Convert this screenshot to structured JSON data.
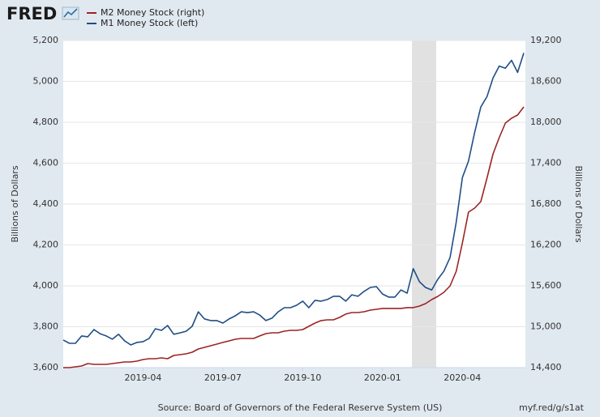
{
  "chart_data": {
    "type": "line",
    "brand": "FRED",
    "source": "Source: Board of Governors of the Federal Reserve System (US)",
    "url": "myf.red/g/s1at",
    "ylabel": "Billions of Dollars",
    "y2label": "Billions of Dollars",
    "grid": true,
    "categories": [
      null,
      null,
      null,
      null,
      null,
      null,
      null,
      null,
      null,
      null,
      null,
      null,
      null,
      "2019-04",
      null,
      null,
      null,
      null,
      null,
      null,
      null,
      null,
      null,
      null,
      null,
      null,
      "2019-07",
      null,
      null,
      null,
      null,
      null,
      null,
      null,
      null,
      null,
      null,
      null,
      null,
      "2019-10",
      null,
      null,
      null,
      null,
      null,
      null,
      null,
      null,
      null,
      null,
      null,
      null,
      "2020-01",
      null,
      null,
      null,
      null,
      null,
      null,
      null,
      null,
      null,
      null,
      null,
      null,
      "2020-04",
      null,
      null,
      null,
      null,
      null,
      null,
      null,
      null,
      null,
      null
    ],
    "ylim": [
      3600,
      5200
    ],
    "yticks": [
      {
        "value": 3600,
        "label": "3,600"
      },
      {
        "value": 3800,
        "label": "3,800"
      },
      {
        "value": 4000,
        "label": "4,000"
      },
      {
        "value": 4200,
        "label": "4,200"
      },
      {
        "value": 4400,
        "label": "4,400"
      },
      {
        "value": 4600,
        "label": "4,600"
      },
      {
        "value": 4800,
        "label": "4,800"
      },
      {
        "value": 5000,
        "label": "5,000"
      },
      {
        "value": 5200,
        "label": "5,200"
      }
    ],
    "y2lim": [
      14400,
      19200
    ],
    "y2ticks": [
      {
        "value": 14400,
        "label": "14,400"
      },
      {
        "value": 15000,
        "label": "15,000"
      },
      {
        "value": 15600,
        "label": "15,600"
      },
      {
        "value": 16200,
        "label": "16,200"
      },
      {
        "value": 16800,
        "label": "16,800"
      },
      {
        "value": 17400,
        "label": "17,400"
      },
      {
        "value": 18000,
        "label": "18,000"
      },
      {
        "value": 18600,
        "label": "18,600"
      },
      {
        "value": 19200,
        "label": "19,200"
      }
    ],
    "series": [
      {
        "name": "M2 Money Stock (right)",
        "color": "#9c2424",
        "axis": "y2",
        "values": [
          14400,
          14400,
          14412,
          14424,
          14459,
          14448,
          14448,
          14448,
          14459,
          14471,
          14483,
          14483,
          14495,
          14519,
          14531,
          14531,
          14543,
          14531,
          14578,
          14590,
          14602,
          14626,
          14673,
          14697,
          14721,
          14745,
          14769,
          14792,
          14816,
          14828,
          14828,
          14828,
          14864,
          14899,
          14911,
          14911,
          14935,
          14947,
          14947,
          14959,
          15006,
          15054,
          15090,
          15101,
          15101,
          15137,
          15185,
          15208,
          15208,
          15220,
          15244,
          15256,
          15268,
          15268,
          15268,
          15268,
          15280,
          15280,
          15303,
          15339,
          15398,
          15446,
          15505,
          15600,
          15814,
          16230,
          16681,
          16741,
          16836,
          17180,
          17537,
          17774,
          17988,
          18059,
          18107,
          18226
        ]
      },
      {
        "name": "M1 Money Stock (left)",
        "color": "#1f4e85",
        "axis": "y",
        "values": [
          3735,
          3719,
          3719,
          3755,
          3751,
          3786,
          3766,
          3755,
          3739,
          3763,
          3731,
          3711,
          3723,
          3727,
          3743,
          3790,
          3782,
          3806,
          3763,
          3770,
          3778,
          3802,
          3873,
          3838,
          3830,
          3830,
          3818,
          3838,
          3853,
          3873,
          3869,
          3873,
          3857,
          3830,
          3842,
          3873,
          3893,
          3893,
          3905,
          3925,
          3893,
          3929,
          3925,
          3933,
          3949,
          3949,
          3925,
          3956,
          3949,
          3973,
          3992,
          3996,
          3960,
          3945,
          3945,
          3980,
          3964,
          4084,
          4020,
          3992,
          3980,
          4032,
          4072,
          4139,
          4312,
          4530,
          4610,
          4750,
          4875,
          4925,
          5017,
          5075,
          5064,
          5103,
          5044,
          5139
        ]
      }
    ]
  }
}
